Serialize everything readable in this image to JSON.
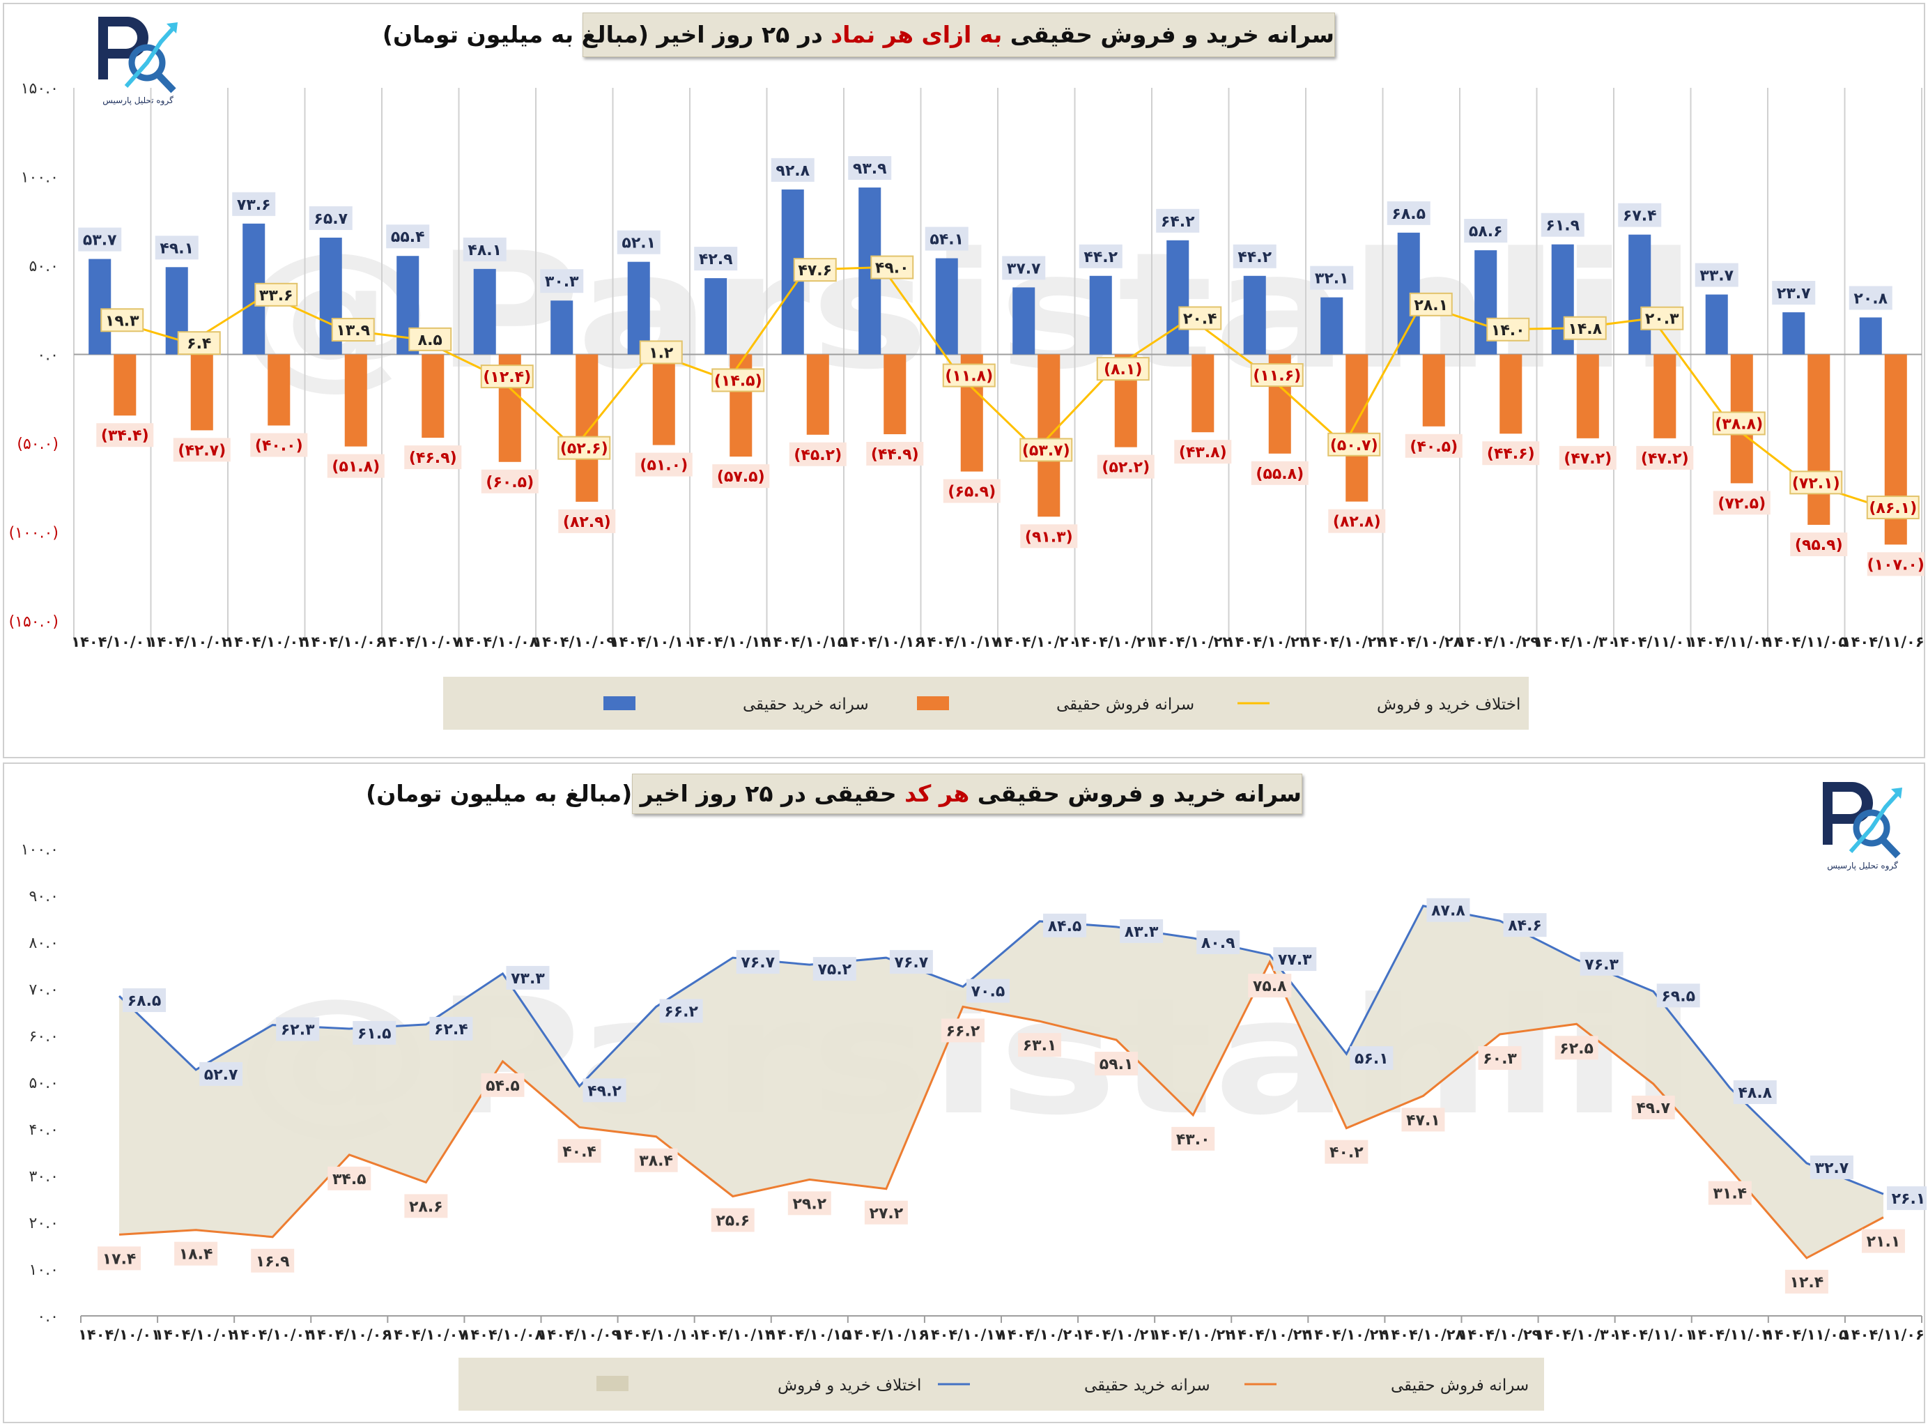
{
  "chart_data": [
    {
      "type": "bar",
      "title_parts": [
        "سرانه خرید و فروش حقیقی ",
        "به ازای هر نماد",
        " در ۲۵ روز اخیر (مبالغ به میلیون تومان)"
      ],
      "categories": [
        "۱۴۰۴/۱۰/۰۱",
        "۱۴۰۴/۱۰/۰۲",
        "۱۴۰۴/۱۰/۰۳",
        "۱۴۰۴/۱۰/۰۶",
        "۱۴۰۴/۱۰/۰۷",
        "۱۴۰۴/۱۰/۰۸",
        "۱۴۰۴/۱۰/۰۹",
        "۱۴۰۴/۱۰/۱۰",
        "۱۴۰۴/۱۰/۱۴",
        "۱۴۰۴/۱۰/۱۵",
        "۱۴۰۴/۱۰/۱۶",
        "۱۴۰۴/۱۰/۱۷",
        "۱۴۰۴/۱۰/۲۰",
        "۱۴۰۴/۱۰/۲۱",
        "۱۴۰۴/۱۰/۲۲",
        "۱۴۰۴/۱۰/۲۳",
        "۱۴۰۴/۱۰/۲۴",
        "۱۴۰۴/۱۰/۲۸",
        "۱۴۰۴/۱۰/۲۹",
        "۱۴۰۴/۱۰/۳۰",
        "۱۴۰۴/۱۱/۰۱",
        "۱۴۰۴/۱۱/۰۴",
        "۱۴۰۴/۱۱/۰۵",
        "۱۴۰۴/۱۱/۰۶"
      ],
      "series": [
        {
          "name": "سرانه خرید حقیقی",
          "kind": "bar",
          "color": "#4472c4",
          "values": [
            53.7,
            49.1,
            73.6,
            65.7,
            55.4,
            48.1,
            30.3,
            52.1,
            42.9,
            92.8,
            93.9,
            54.1,
            37.7,
            44.2,
            64.2,
            44.2,
            32.1,
            68.5,
            58.6,
            61.9,
            67.4,
            33.7,
            23.7,
            20.8
          ],
          "labels": [
            "۵۳.۷",
            "۴۹.۱",
            "۷۳.۶",
            "۶۵.۷",
            "۵۵.۴",
            "۴۸.۱",
            "۳۰.۳",
            "۵۲.۱",
            "۴۲.۹",
            "۹۲.۸",
            "۹۳.۹",
            "۵۴.۱",
            "۳۷.۷",
            "۴۴.۲",
            "۶۴.۲",
            "۴۴.۲",
            "۳۲.۱",
            "۶۸.۵",
            "۵۸.۶",
            "۶۱.۹",
            "۶۷.۴",
            "۳۳.۷",
            "۲۳.۷",
            "۲۰.۸"
          ]
        },
        {
          "name": "سرانه فروش حقیقی",
          "kind": "bar",
          "color": "#ed7d31",
          "values": [
            -34.4,
            -42.7,
            -40.0,
            -51.8,
            -46.9,
            -60.5,
            -82.9,
            -51.0,
            -57.5,
            -45.2,
            -44.9,
            -65.9,
            -91.3,
            -52.2,
            -43.8,
            -55.8,
            -82.8,
            -40.5,
            -44.6,
            -47.2,
            -47.2,
            -72.5,
            -95.9,
            -107.0
          ],
          "labels": [
            "(۳۴.۴)",
            "(۴۲.۷)",
            "(۴۰.۰)",
            "(۵۱.۸)",
            "(۴۶.۹)",
            "(۶۰.۵)",
            "(۸۲.۹)",
            "(۵۱.۰)",
            "(۵۷.۵)",
            "(۴۵.۲)",
            "(۴۴.۹)",
            "(۶۵.۹)",
            "(۹۱.۳)",
            "(۵۲.۲)",
            "(۴۳.۸)",
            "(۵۵.۸)",
            "(۸۲.۸)",
            "(۴۰.۵)",
            "(۴۴.۶)",
            "(۴۷.۲)",
            "(۴۷.۲)",
            "(۷۲.۵)",
            "(۹۵.۹)",
            "(۱۰۷.۰)"
          ]
        },
        {
          "name": "اختلاف خرید و فروش",
          "kind": "line",
          "color": "#ffc000",
          "values": [
            19.3,
            6.4,
            33.6,
            13.9,
            8.5,
            -12.4,
            -52.6,
            1.2,
            -14.5,
            47.6,
            49.0,
            -11.8,
            -53.7,
            -8.1,
            20.4,
            -11.6,
            -50.7,
            28.1,
            14.0,
            14.8,
            20.3,
            -38.8,
            -72.1,
            -86.1
          ],
          "labels": [
            "۱۹.۳",
            "۶.۴",
            "۳۳.۶",
            "۱۳.۹",
            "۸.۵",
            "(۱۲.۴)",
            "(۵۲.۶)",
            "۱.۲",
            "(۱۴.۵)",
            "۴۷.۶",
            "۴۹.۰",
            "(۱۱.۸)",
            "(۵۳.۷)",
            "(۸.۱)",
            "۲۰.۴",
            "(۱۱.۶)",
            "(۵۰.۷)",
            "۲۸.۱",
            "۱۴.۰",
            "۱۴.۸",
            "۲۰.۳",
            "(۳۸.۸)",
            "(۷۲.۱)",
            "(۸۶.۱)"
          ]
        }
      ],
      "ylim": [
        -150,
        150
      ],
      "yticks": [
        150,
        100,
        50,
        0,
        -50,
        -100,
        -150
      ],
      "ytick_labels": [
        "۱۵۰.۰",
        "۱۰۰.۰",
        "۵۰.۰",
        "۰.۰",
        "(۵۰.۰)",
        "(۱۰۰.۰)",
        "(۱۵۰.۰)"
      ],
      "legend": [
        "سرانه خرید حقیقی",
        "سرانه فروش حقیقی",
        "اختلاف خرید و فروش"
      ],
      "legend_position": "bottom",
      "grid": "vertical"
    },
    {
      "type": "area",
      "title_parts": [
        "سرانه خرید و فروش حقیقی ",
        "هر کد",
        " حقیقی در ۲۵ روز اخیر (مبالغ به میلیون تومان)"
      ],
      "categories": [
        "۱۴۰۴/۱۰/۰۱",
        "۱۴۰۴/۱۰/۰۲",
        "۱۴۰۴/۱۰/۰۳",
        "۱۴۰۴/۱۰/۰۶",
        "۱۴۰۴/۱۰/۰۷",
        "۱۴۰۴/۱۰/۰۸",
        "۱۴۰۴/۱۰/۰۹",
        "۱۴۰۴/۱۰/۱۰",
        "۱۴۰۴/۱۰/۱۴",
        "۱۴۰۴/۱۰/۱۵",
        "۱۴۰۴/۱۰/۱۶",
        "۱۴۰۴/۱۰/۱۷",
        "۱۴۰۴/۱۰/۲۰",
        "۱۴۰۴/۱۰/۲۱",
        "۱۴۰۴/۱۰/۲۲",
        "۱۴۰۴/۱۰/۲۳",
        "۱۴۰۴/۱۰/۲۴",
        "۱۴۰۴/۱۰/۲۸",
        "۱۴۰۴/۱۰/۲۹",
        "۱۴۰۴/۱۰/۳۰",
        "۱۴۰۴/۱۱/۰۱",
        "۱۴۰۴/۱۱/۰۴",
        "۱۴۰۴/۱۱/۰۵",
        "۱۴۰۴/۱۱/۰۶"
      ],
      "series": [
        {
          "name": "سرانه خرید حقیقی",
          "kind": "line",
          "color": "#4472c4",
          "values": [
            68.5,
            52.7,
            62.3,
            61.5,
            62.4,
            73.3,
            49.2,
            66.2,
            76.7,
            75.2,
            76.7,
            70.5,
            84.5,
            83.3,
            80.9,
            77.3,
            56.1,
            87.8,
            84.6,
            76.3,
            69.5,
            48.8,
            32.7,
            26.1
          ],
          "labels": [
            "۶۸.۵",
            "۵۲.۷",
            "۶۲.۳",
            "۶۱.۵",
            "۶۲.۴",
            "۷۳.۳",
            "۴۹.۲",
            "۶۶.۲",
            "۷۶.۷",
            "۷۵.۲",
            "۷۶.۷",
            "۷۰.۵",
            "۸۴.۵",
            "۸۳.۳",
            "۸۰.۹",
            "۷۷.۳",
            "۵۶.۱",
            "۸۷.۸",
            "۸۴.۶",
            "۷۶.۳",
            "۶۹.۵",
            "۴۸.۸",
            "۳۲.۷",
            "۲۶.۱"
          ]
        },
        {
          "name": "سرانه فروش حقیقی",
          "kind": "line",
          "color": "#ed7d31",
          "values": [
            17.4,
            18.4,
            16.9,
            34.5,
            28.6,
            54.5,
            40.4,
            38.4,
            25.6,
            29.2,
            27.2,
            66.2,
            63.1,
            59.1,
            43.0,
            75.8,
            40.2,
            47.1,
            60.3,
            62.5,
            49.7,
            31.4,
            12.4,
            21.1
          ],
          "labels": [
            "۱۷.۴",
            "۱۸.۴",
            "۱۶.۹",
            "۳۴.۵",
            "۲۸.۶",
            "۵۴.۵",
            "۴۰.۴",
            "۳۸.۴",
            "۲۵.۶",
            "۲۹.۲",
            "۲۷.۲",
            "۶۶.۲",
            "۶۳.۱",
            "۵۹.۱",
            "۴۳.۰",
            "۷۵.۸",
            "۴۰.۲",
            "۴۷.۱",
            "۶۰.۳",
            "۶۲.۵",
            "۴۹.۷",
            "۳۱.۴",
            "۱۲.۴",
            "۲۱.۱"
          ]
        },
        {
          "name": "اختلاف خرید و فروش",
          "kind": "area",
          "color": "#e7e3d4"
        }
      ],
      "ylim": [
        0,
        100
      ],
      "yticks": [
        100,
        90,
        80,
        70,
        60,
        50,
        40,
        30,
        20,
        10,
        0
      ],
      "ytick_labels": [
        "۱۰۰.۰",
        "۹۰.۰",
        "۸۰.۰",
        "۷۰.۰",
        "۶۰.۰",
        "۵۰.۰",
        "۴۰.۰",
        "۳۰.۰",
        "۲۰.۰",
        "۱۰.۰",
        "۰.۰"
      ],
      "legend": [
        "اختلاف خرید و فروش",
        "سرانه خرید حقیقی",
        "سرانه فروش حقیقی"
      ],
      "legend_position": "bottom"
    }
  ],
  "watermark": "@Parsistahlil",
  "logo_caption": "گروه تحلیل پارسیس",
  "colors": {
    "buy": "#4472c4",
    "sell": "#ed7d31",
    "diff": "#ffc000",
    "area": "#e7e3d4",
    "title_highlight": "#c00000"
  }
}
